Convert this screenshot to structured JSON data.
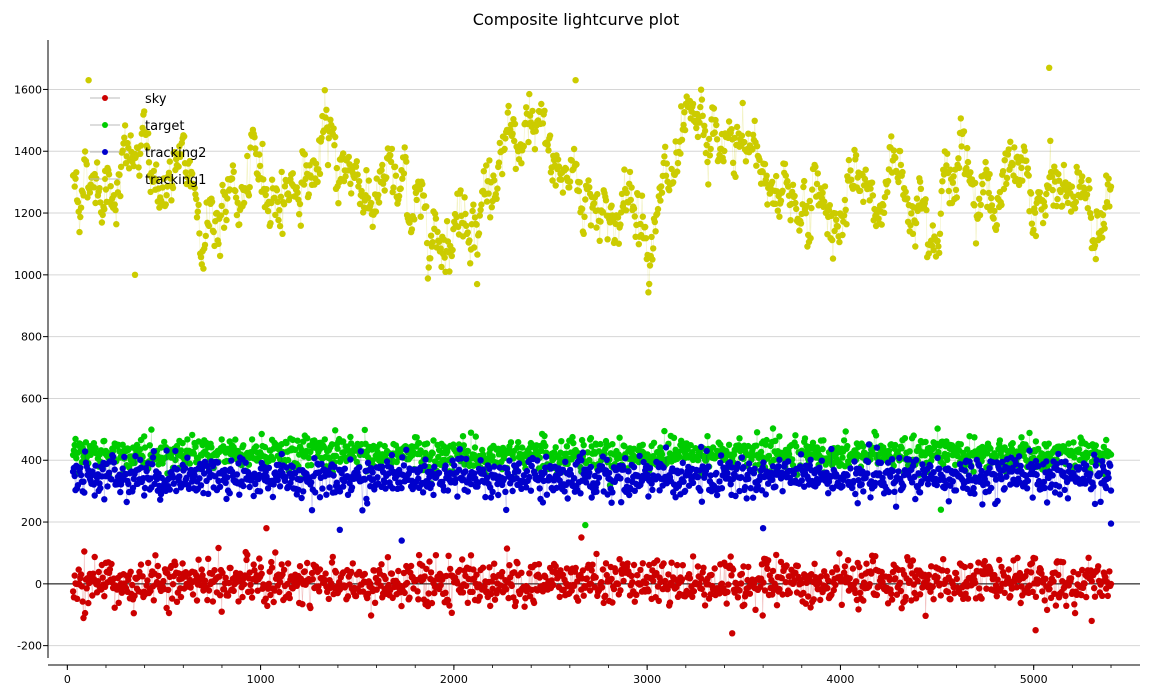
{
  "chart_data": {
    "type": "scatter",
    "title": "Composite lightcurve plot",
    "xlabel": "",
    "ylabel": "",
    "xlim": [
      -100,
      5550
    ],
    "ylim": [
      -240,
      1760
    ],
    "x_ticks": [
      "0",
      "1000",
      "2000",
      "3000",
      "4000",
      "5000"
    ],
    "y_ticks": [
      "-200",
      "0",
      "200",
      "400",
      "600",
      "800",
      "1000",
      "1200",
      "1400",
      "1600"
    ],
    "grid": true,
    "legend_position": "top-left",
    "x_start": 30,
    "x_end": 5400,
    "series": [
      {
        "name": "sky",
        "color": "#cc0000",
        "baseline": 5,
        "spread": 55,
        "outliers": [
          [
            1030,
            180
          ],
          [
            2660,
            150
          ],
          [
            3440,
            -160
          ],
          [
            5010,
            -150
          ],
          [
            5300,
            -120
          ]
        ]
      },
      {
        "name": "target",
        "color": "#00cc00",
        "baseline": 420,
        "spread": 40,
        "outliers": [
          [
            2680,
            190
          ],
          [
            4520,
            240
          ]
        ]
      },
      {
        "name": "tracking2",
        "color": "#0000cc",
        "baseline": 345,
        "spread": 50,
        "outliers": [
          [
            1410,
            175
          ],
          [
            1730,
            140
          ],
          [
            3600,
            180
          ],
          [
            5400,
            195
          ]
        ]
      },
      {
        "name": "tracking1",
        "color": "#cccc00",
        "baseline": 1290,
        "spread": 160,
        "outliers": [
          [
            110,
            1630
          ],
          [
            2630,
            1630
          ],
          [
            5080,
            1670
          ],
          [
            350,
            1000
          ],
          [
            2120,
            970
          ]
        ]
      }
    ]
  }
}
